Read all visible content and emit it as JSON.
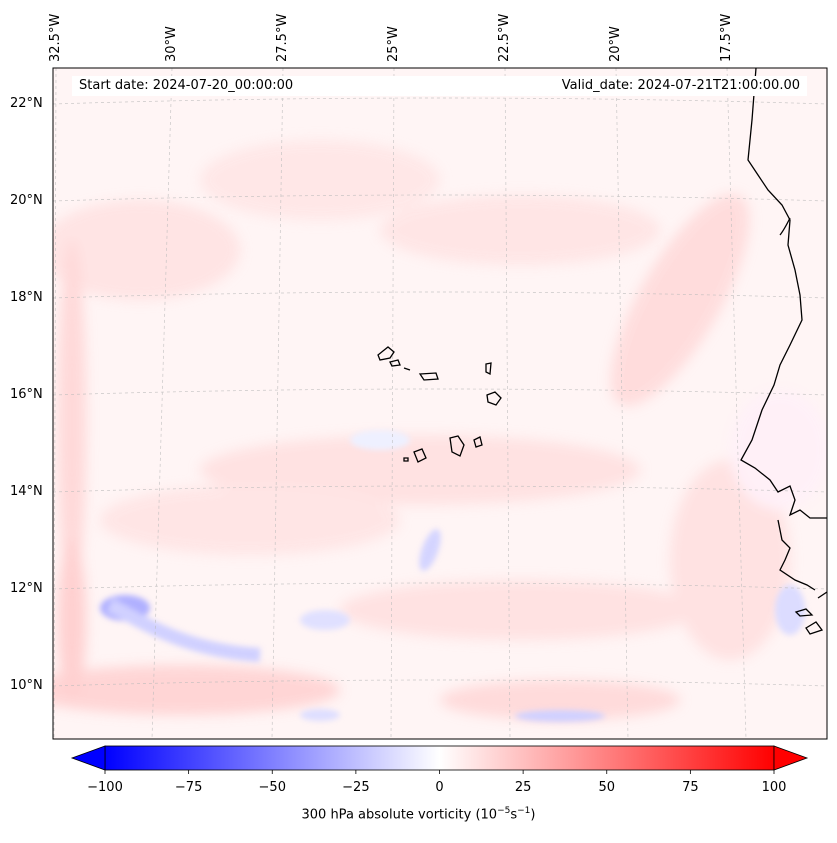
{
  "header": {
    "start_date": "Start date: 2024-07-20_00:00:00",
    "valid_date": "Valid_date: 2024-07-21T21:00:00.00"
  },
  "axes": {
    "lon_labels": [
      "32.5°W",
      "30°W",
      "27.5°W",
      "25°W",
      "22.5°W",
      "20°W",
      "17.5°W"
    ],
    "lat_labels": [
      "22°N",
      "20°N",
      "18°N",
      "16°N",
      "14°N",
      "12°N",
      "10°N"
    ]
  },
  "colorbar": {
    "ticks": [
      "−100",
      "−75",
      "−50",
      "−25",
      "0",
      "25",
      "50",
      "75",
      "100"
    ],
    "title": "300 hPa absolute vorticity (10",
    "title_exp1": "−5",
    "title_mid": "s",
    "title_exp2": "−1",
    "title_end": ")",
    "min": -100,
    "max": 100,
    "extend": "both",
    "cmap": "bwr",
    "low_color": "#0000ff",
    "mid_color": "#ffffff",
    "high_color": "#ff0000"
  },
  "map": {
    "field_background": "#fff5f5",
    "positive_tint": "#ffd4d4",
    "negative_tint": "#c8c8ff",
    "coastline_color": "#000000",
    "gridline_color": "#bbbbbb"
  }
}
